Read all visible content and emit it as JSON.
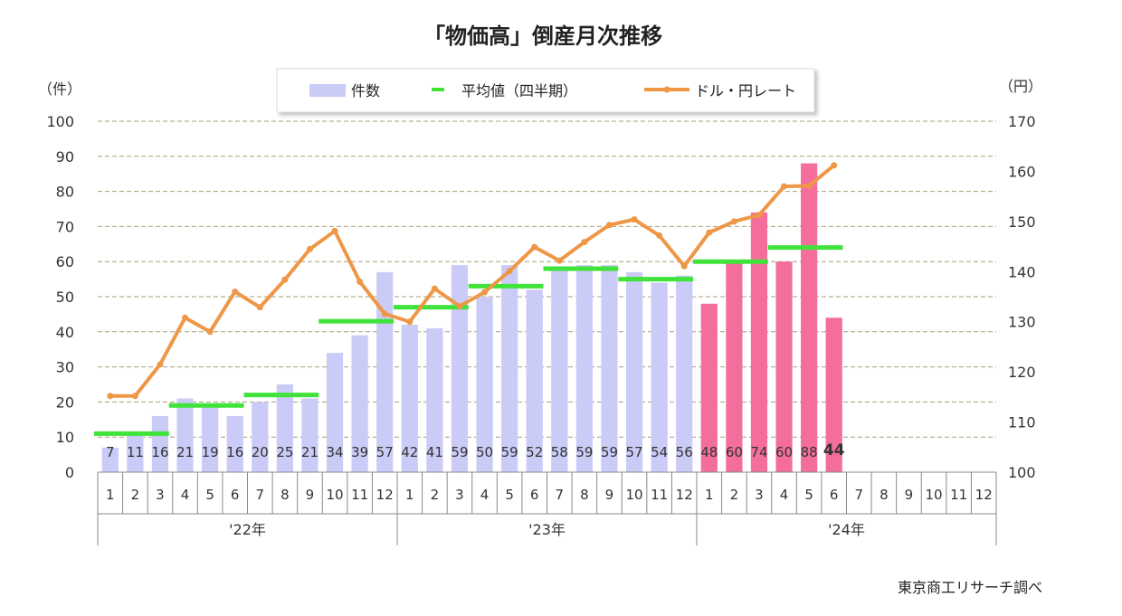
{
  "chart_data": {
    "type": "bar+line",
    "title": "「物価高」倒産月次推移",
    "left_unit": "（件）",
    "right_unit": "（円）",
    "source": "東京商工リサーチ調べ",
    "y_left": {
      "min": 0,
      "max": 100,
      "step": 10
    },
    "y_right": {
      "min": 100,
      "max": 170,
      "step": 10
    },
    "grid": "dashed horizontal",
    "legend": {
      "position": "top-center",
      "items": [
        "件数",
        "平均値（四半期）",
        "ドル・円レート"
      ]
    },
    "years": [
      {
        "label": "'22年",
        "months": 12
      },
      {
        "label": "'23年",
        "months": 12
      },
      {
        "label": "'24年",
        "months": 12
      }
    ],
    "month_labels": [
      "1",
      "2",
      "3",
      "4",
      "5",
      "6",
      "7",
      "8",
      "9",
      "10",
      "11",
      "12",
      "1",
      "2",
      "3",
      "4",
      "5",
      "6",
      "7",
      "8",
      "9",
      "10",
      "11",
      "12",
      "1",
      "2",
      "3",
      "4",
      "5",
      "6",
      "7",
      "8",
      "9",
      "10",
      "11",
      "12"
    ],
    "counts": [
      7,
      11,
      16,
      21,
      19,
      16,
      20,
      25,
      21,
      34,
      39,
      57,
      42,
      41,
      59,
      50,
      59,
      52,
      58,
      59,
      59,
      57,
      54,
      56,
      48,
      60,
      74,
      60,
      88,
      44
    ],
    "count_labels": [
      "7",
      "11",
      "16",
      "21",
      "19",
      "16",
      "20",
      "25",
      "21",
      "34",
      "39",
      "57",
      "42",
      "41",
      "59",
      "50",
      "59",
      "52",
      "58",
      "59",
      "59",
      "57",
      "54",
      "56",
      "48",
      "60",
      "74",
      "60",
      "88",
      "44"
    ],
    "highlight_from_index": 24,
    "quarterly_average": [
      {
        "from": 0,
        "to": 2,
        "value": 11
      },
      {
        "from": 3,
        "to": 5,
        "value": 19
      },
      {
        "from": 6,
        "to": 8,
        "value": 22
      },
      {
        "from": 9,
        "to": 11,
        "value": 43
      },
      {
        "from": 12,
        "to": 14,
        "value": 47
      },
      {
        "from": 15,
        "to": 17,
        "value": 53
      },
      {
        "from": 18,
        "to": 20,
        "value": 58
      },
      {
        "from": 21,
        "to": 23,
        "value": 55
      },
      {
        "from": 24,
        "to": 26,
        "value": 60
      },
      {
        "from": 27,
        "to": 29,
        "value": 64
      }
    ],
    "usd_jpy": [
      115.2,
      115.2,
      121.5,
      130.8,
      128.0,
      136.0,
      132.9,
      138.4,
      144.5,
      148.1,
      138.0,
      131.6,
      130.0,
      136.6,
      133.1,
      135.9,
      140.1,
      144.9,
      142.2,
      145.9,
      149.3,
      150.4,
      147.2,
      141.1,
      147.8,
      150.0,
      151.3,
      157.0,
      157.1,
      161.2
    ],
    "colors": {
      "bars_main": "#cacbf6",
      "bars_highlight": "#f46e9d",
      "average": "#3fe33a",
      "rate": "#ee9747",
      "grid": "#a4a27c",
      "axis": "#888888"
    }
  }
}
